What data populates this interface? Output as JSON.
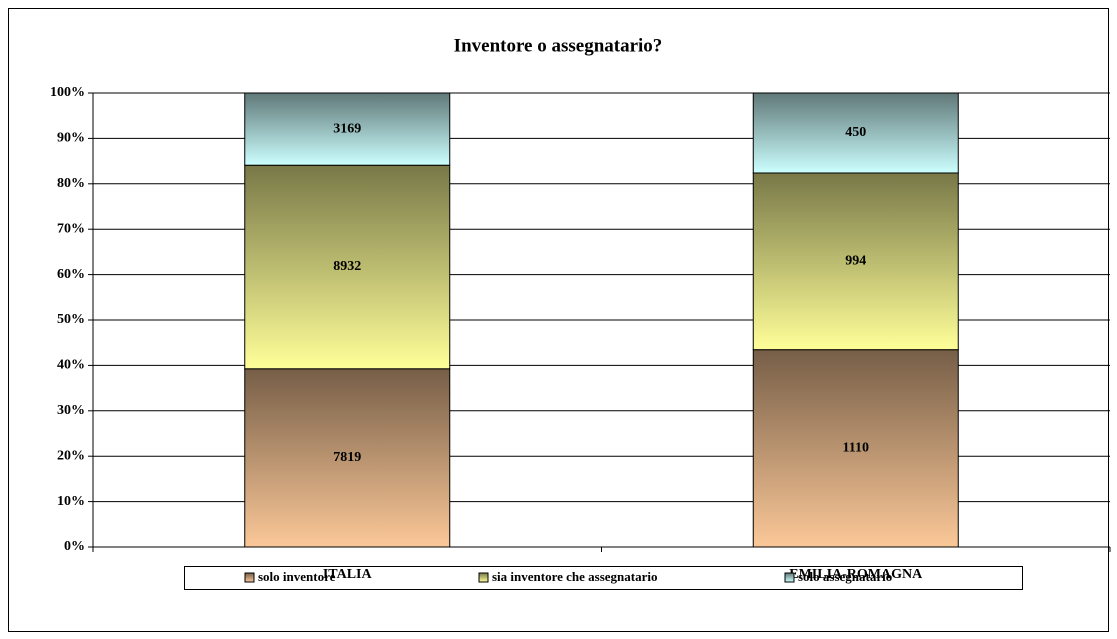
{
  "chart_data": {
    "type": "bar",
    "stacking": "percent",
    "title": "Inventore o assegnatario?",
    "categories": [
      "ITALIA",
      "EMILIA-ROMAGNA"
    ],
    "series": [
      {
        "name": "solo inventore",
        "color": "#fbc898",
        "values": [
          7819,
          1110
        ]
      },
      {
        "name": "sia inventore che assegnatario",
        "color": "#ffff99",
        "values": [
          8932,
          994
        ]
      },
      {
        "name": "solo assegnatario",
        "color": "#ccffff",
        "values": [
          3169,
          450
        ]
      }
    ],
    "ylim": [
      0,
      100
    ],
    "yticks": [
      {
        "value": 0,
        "label": "0%"
      },
      {
        "value": 10,
        "label": "10%"
      },
      {
        "value": 20,
        "label": "20%"
      },
      {
        "value": 30,
        "label": "30%"
      },
      {
        "value": 40,
        "label": "40%"
      },
      {
        "value": 50,
        "label": "50%"
      },
      {
        "value": 60,
        "label": "60%"
      },
      {
        "value": 70,
        "label": "70%"
      },
      {
        "value": 80,
        "label": "80%"
      },
      {
        "value": 90,
        "label": "90%"
      },
      {
        "value": 100,
        "label": "100%"
      }
    ],
    "grid": true,
    "legend": "bottom"
  }
}
